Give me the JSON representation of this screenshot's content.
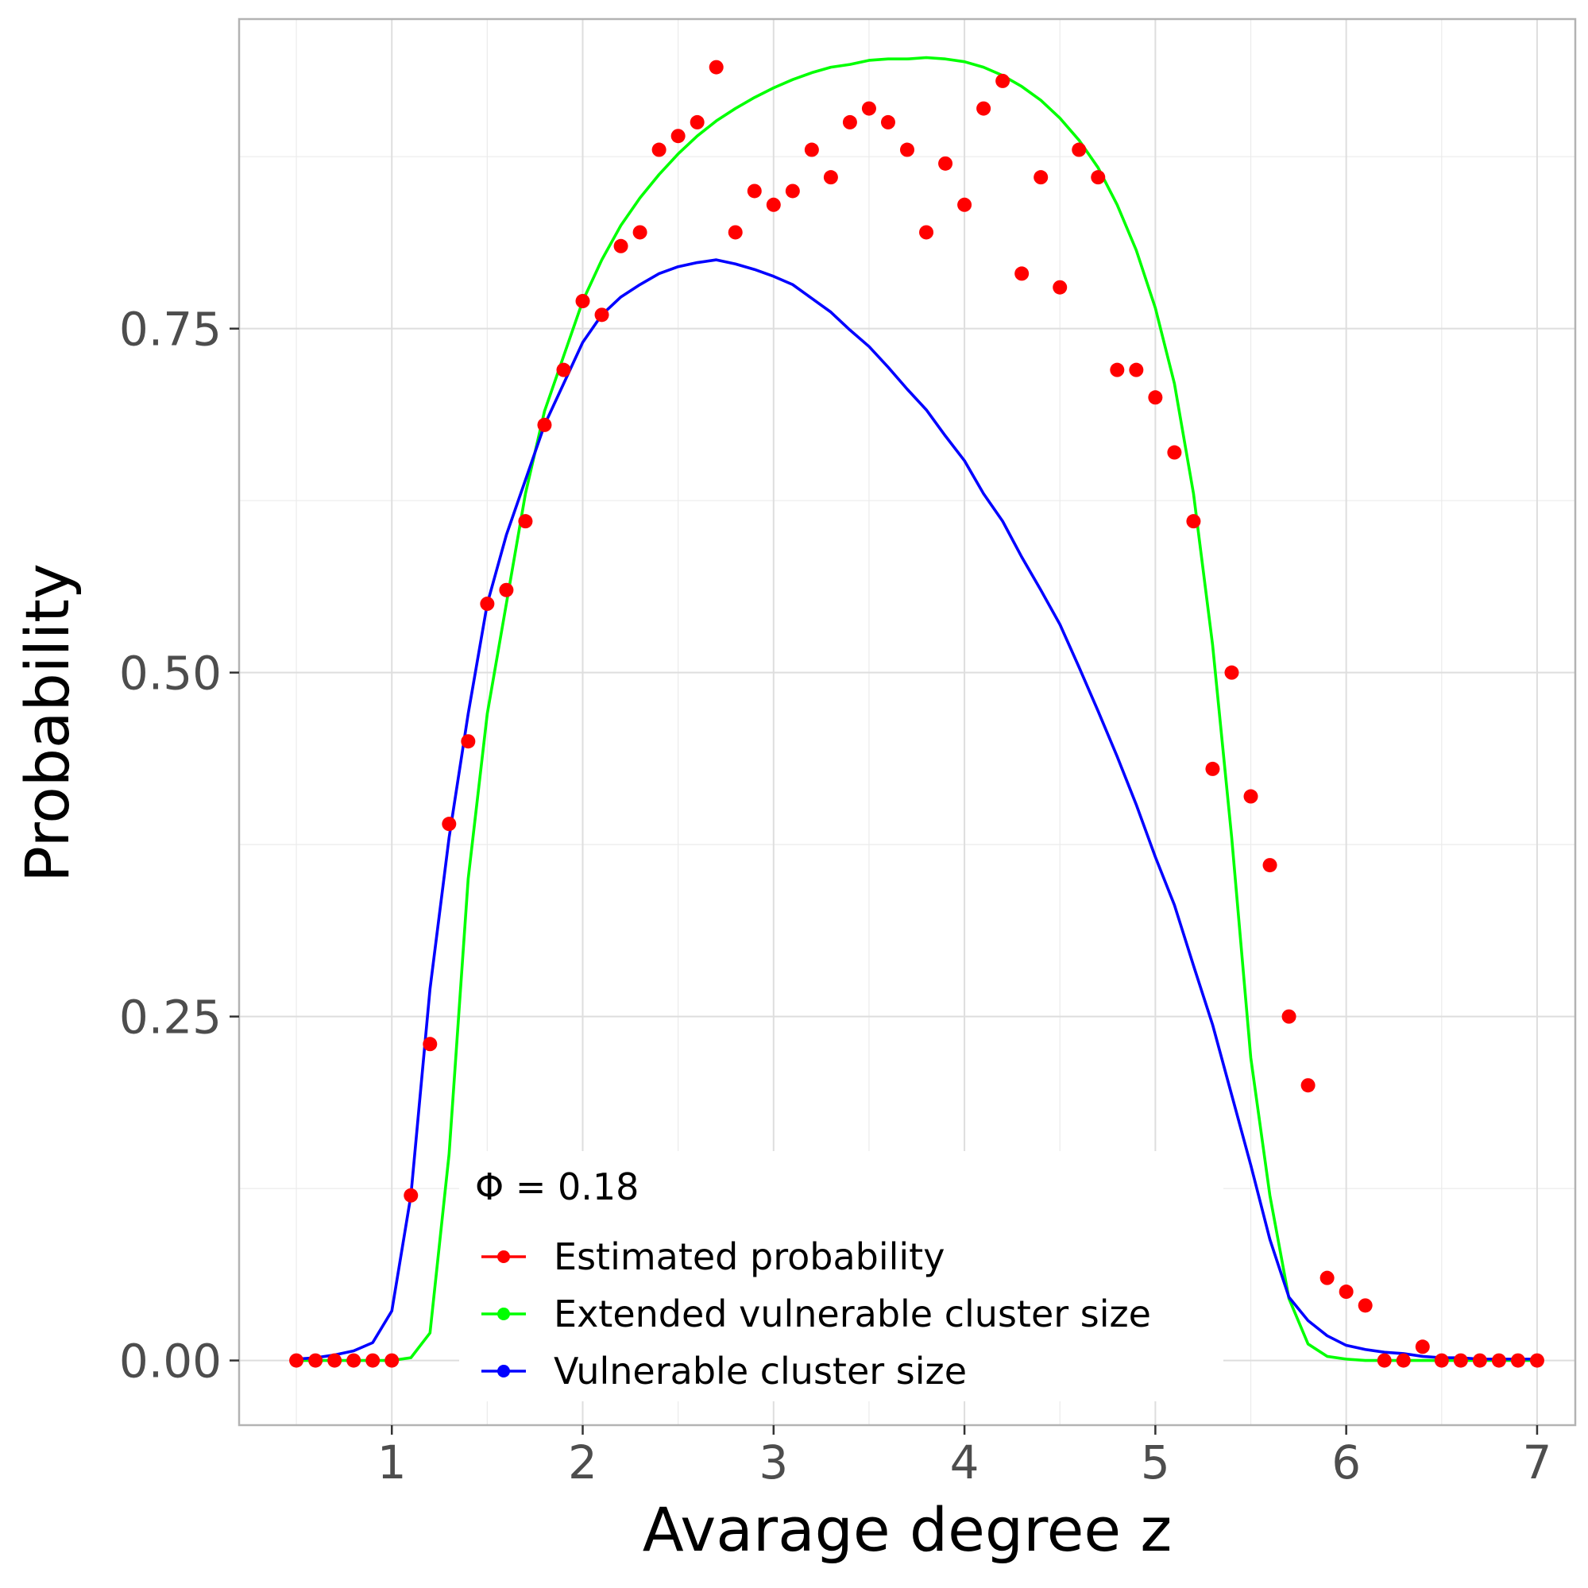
{
  "chart_data": {
    "type": "line",
    "xlabel": "Avarage degree z",
    "ylabel": "Probability",
    "xlim": [
      0.2,
      7.2
    ],
    "ylim": [
      -0.047,
      0.975
    ],
    "x_ticks": [
      1,
      2,
      3,
      4,
      5,
      6,
      7
    ],
    "x_tick_labels": [
      "1",
      "2",
      "3",
      "4",
      "5",
      "6",
      "7"
    ],
    "y_ticks": [
      0,
      0.25,
      0.5,
      0.75
    ],
    "y_tick_labels": [
      "0.00",
      "0.25",
      "0.50",
      "0.75"
    ],
    "grid": true,
    "legend_position": "bottom-center",
    "legend_title": "Φ = 0.18",
    "series": [
      {
        "name": "Estimated probability",
        "style": "points",
        "color": "#ff0000",
        "x": [
          0.5,
          0.6,
          0.7,
          0.8,
          0.9,
          1.0,
          1.1,
          1.2,
          1.3,
          1.4,
          1.5,
          1.6,
          1.7,
          1.8,
          1.9,
          2.0,
          2.1,
          2.2,
          2.3,
          2.4,
          2.5,
          2.6,
          2.7,
          2.8,
          2.9,
          3.0,
          3.1,
          3.2,
          3.3,
          3.4,
          3.5,
          3.6,
          3.7,
          3.8,
          3.9,
          4.0,
          4.1,
          4.2,
          4.3,
          4.4,
          4.5,
          4.6,
          4.7,
          4.8,
          4.9,
          5.0,
          5.1,
          5.2,
          5.3,
          5.4,
          5.5,
          5.6,
          5.7,
          5.8,
          5.9,
          6.0,
          6.1,
          6.2,
          6.3,
          6.4,
          6.5,
          6.6,
          6.7,
          6.8,
          6.9,
          7.0
        ],
        "y": [
          0,
          0,
          0,
          0,
          0,
          0,
          0.12,
          0.23,
          0.39,
          0.45,
          0.55,
          0.56,
          0.61,
          0.68,
          0.72,
          0.77,
          0.76,
          0.81,
          0.82,
          0.88,
          0.89,
          0.9,
          0.94,
          0.82,
          0.85,
          0.84,
          0.85,
          0.88,
          0.86,
          0.9,
          0.91,
          0.9,
          0.88,
          0.82,
          0.87,
          0.84,
          0.91,
          0.93,
          0.79,
          0.86,
          0.78,
          0.88,
          0.86,
          0.72,
          0.72,
          0.7,
          0.66,
          0.61,
          0.43,
          0.5,
          0.41,
          0.36,
          0.25,
          0.2,
          0.06,
          0.05,
          0.04,
          0,
          0,
          0.01,
          0,
          0,
          0,
          0,
          0,
          0
        ]
      },
      {
        "name": "Extended vulnerable cluster size",
        "style": "line",
        "color": "#00ff00",
        "x": [
          0.5,
          0.6,
          0.7,
          0.8,
          0.9,
          1.0,
          1.1,
          1.2,
          1.3,
          1.4,
          1.5,
          1.6,
          1.7,
          1.8,
          1.9,
          2.0,
          2.1,
          2.2,
          2.3,
          2.4,
          2.5,
          2.6,
          2.7,
          2.8,
          2.9,
          3.0,
          3.1,
          3.2,
          3.3,
          3.4,
          3.5,
          3.6,
          3.7,
          3.8,
          3.9,
          4.0,
          4.1,
          4.2,
          4.3,
          4.4,
          4.5,
          4.6,
          4.7,
          4.8,
          4.9,
          5.0,
          5.1,
          5.2,
          5.3,
          5.4,
          5.5,
          5.6,
          5.7,
          5.8,
          5.9,
          6.0,
          6.1,
          6.2,
          6.3,
          6.4,
          6.5,
          6.6,
          6.7,
          6.8,
          6.9,
          7.0
        ],
        "y": [
          0,
          0,
          0,
          0,
          0,
          0,
          0.002,
          0.02,
          0.15,
          0.35,
          0.47,
          0.55,
          0.63,
          0.69,
          0.73,
          0.77,
          0.8,
          0.825,
          0.845,
          0.862,
          0.877,
          0.89,
          0.901,
          0.91,
          0.918,
          0.925,
          0.931,
          0.936,
          0.94,
          0.942,
          0.945,
          0.946,
          0.946,
          0.947,
          0.946,
          0.944,
          0.94,
          0.934,
          0.926,
          0.916,
          0.903,
          0.887,
          0.867,
          0.84,
          0.807,
          0.765,
          0.71,
          0.63,
          0.52,
          0.38,
          0.22,
          0.12,
          0.045,
          0.012,
          0.003,
          0.001,
          0,
          0,
          0,
          0,
          0,
          0,
          0,
          0,
          0,
          0
        ]
      },
      {
        "name": "Vulnerable cluster size",
        "style": "line",
        "color": "#0000ff",
        "x": [
          0.5,
          0.6,
          0.7,
          0.8,
          0.9,
          1.0,
          1.1,
          1.2,
          1.3,
          1.4,
          1.5,
          1.6,
          1.7,
          1.8,
          1.9,
          2.0,
          2.1,
          2.2,
          2.3,
          2.4,
          2.5,
          2.6,
          2.7,
          2.8,
          2.9,
          3.0,
          3.1,
          3.2,
          3.3,
          3.4,
          3.5,
          3.6,
          3.7,
          3.8,
          3.9,
          4.0,
          4.1,
          4.2,
          4.3,
          4.4,
          4.5,
          4.6,
          4.7,
          4.8,
          4.9,
          5.0,
          5.1,
          5.2,
          5.3,
          5.4,
          5.5,
          5.6,
          5.7,
          5.8,
          5.9,
          6.0,
          6.1,
          6.2,
          6.3,
          6.4,
          6.5,
          6.6,
          6.7,
          6.8,
          6.9,
          7.0
        ],
        "y": [
          0.001,
          0.002,
          0.004,
          0.007,
          0.013,
          0.036,
          0.12,
          0.27,
          0.38,
          0.47,
          0.55,
          0.6,
          0.64,
          0.68,
          0.71,
          0.74,
          0.76,
          0.773,
          0.782,
          0.79,
          0.795,
          0.798,
          0.8,
          0.797,
          0.793,
          0.788,
          0.782,
          0.772,
          0.762,
          0.749,
          0.737,
          0.722,
          0.706,
          0.691,
          0.672,
          0.654,
          0.63,
          0.61,
          0.584,
          0.56,
          0.535,
          0.504,
          0.472,
          0.439,
          0.404,
          0.366,
          0.331,
          0.287,
          0.244,
          0.193,
          0.142,
          0.088,
          0.046,
          0.029,
          0.018,
          0.011,
          0.008,
          0.006,
          0.005,
          0.003,
          0.002,
          0.002,
          0.001,
          0.001,
          0.001,
          0.001
        ]
      }
    ]
  }
}
